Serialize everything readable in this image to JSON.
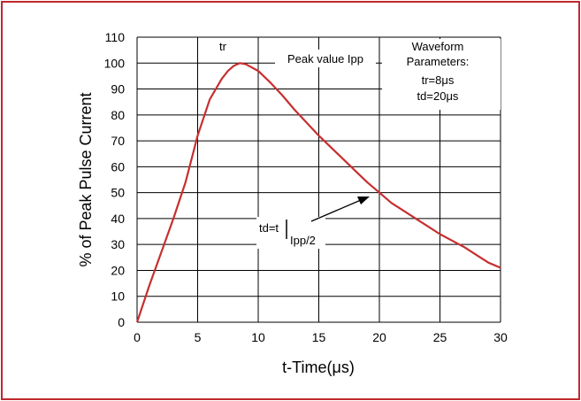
{
  "chart_data": {
    "type": "line",
    "xlabel": "t-Time(μs)",
    "ylabel": "% of Peak Pulse Current",
    "xlim": [
      0,
      30
    ],
    "ylim": [
      0,
      110
    ],
    "xticks": [
      "0",
      "5",
      "10",
      "15",
      "20",
      "25",
      "30"
    ],
    "yticks": [
      "0",
      "10",
      "20",
      "30",
      "40",
      "50",
      "60",
      "70",
      "80",
      "90",
      "100",
      "110"
    ],
    "grid": true,
    "border_color": "#c0282d",
    "series": [
      {
        "color": "#c62f30",
        "x": [
          0,
          1,
          2,
          3,
          4,
          5,
          6,
          7,
          7.5,
          8,
          8.5,
          9,
          10,
          11,
          12,
          13,
          14,
          15,
          16,
          17,
          18,
          19,
          20,
          21,
          22,
          23,
          24,
          25,
          26,
          27,
          28,
          29,
          30
        ],
        "y": [
          0,
          14,
          27,
          40,
          54,
          72,
          86,
          94,
          97,
          99,
          100,
          99.5,
          97,
          92.5,
          87.5,
          82,
          77,
          72,
          67.5,
          63,
          58.5,
          54,
          50,
          46,
          43,
          40,
          37,
          34,
          31.5,
          29,
          26,
          23,
          21
        ]
      }
    ],
    "annotations": {
      "tr_label": "tr",
      "peak_label": "Peak value Ipp",
      "td_label_main": "td=t",
      "td_label_sub": "Ipp/2",
      "waveform_title_1": "Waveform",
      "waveform_title_2": "Parameters:",
      "waveform_tr": "tr=8μs",
      "waveform_td": "td=20μs"
    }
  }
}
